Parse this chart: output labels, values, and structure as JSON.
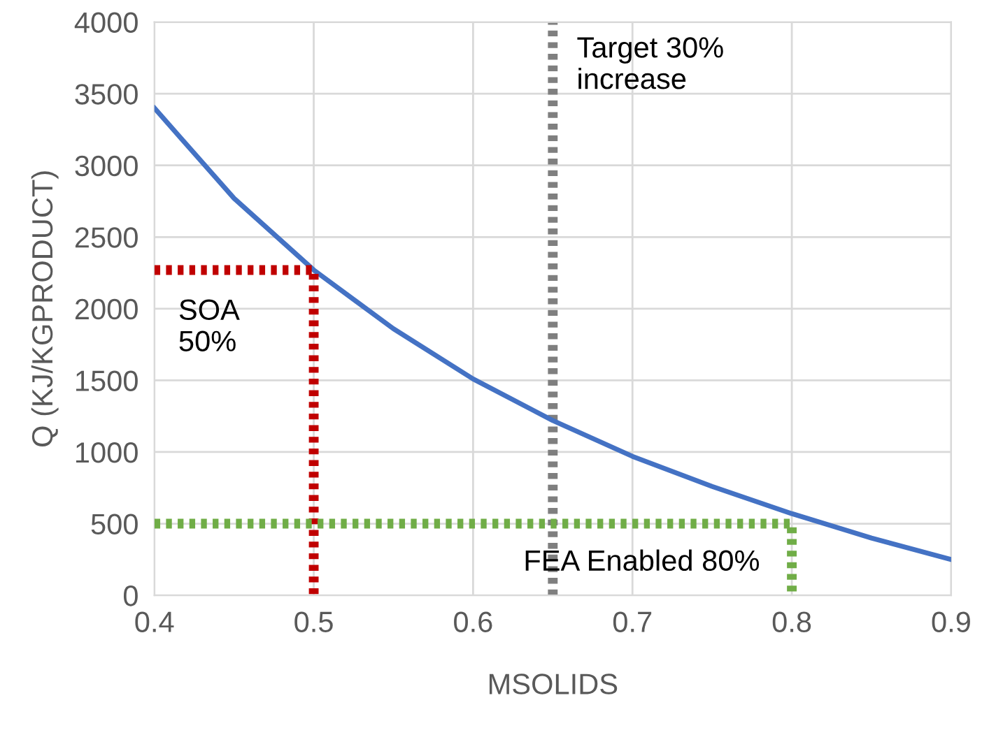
{
  "chart_data": {
    "type": "line",
    "xlabel": "MSOLIDS",
    "ylabel": "Q (KJ/KGPRODUCT)",
    "xlim": [
      0.4,
      0.9
    ],
    "xticks": [
      0.4,
      0.5,
      0.6,
      0.7,
      0.8,
      0.9
    ],
    "ylim": [
      0,
      4000
    ],
    "yticks": [
      0,
      500,
      1000,
      1500,
      2000,
      2500,
      3000,
      3500,
      4000
    ],
    "grid": true,
    "marker": "none",
    "series": [
      {
        "color": "#4472c4",
        "line_style": "solid",
        "x": [
          0.4,
          0.45,
          0.5,
          0.55,
          0.6,
          0.65,
          0.7,
          0.75,
          0.8,
          0.85,
          0.9
        ],
        "values": [
          3400,
          2770,
          2270,
          1860,
          1510,
          1220,
          970,
          760,
          570,
          400,
          250
        ]
      },
      {
        "color": "#c00000",
        "line_style": "dotted",
        "x": [
          0.4,
          0.5,
          0.5
        ],
        "values": [
          2270,
          2270,
          0
        ]
      },
      {
        "color": "#70ad47",
        "line_style": "dotted",
        "x": [
          0.4,
          0.8,
          0.8
        ],
        "values": [
          500,
          500,
          0
        ]
      }
    ],
    "ref_lines": [
      {
        "axis": "x",
        "value": 0.65,
        "label": "Target 30%\nincrease",
        "color": "#7f7f7f",
        "line_style": "dotted"
      }
    ],
    "annotations": [
      {
        "text": "SOA\n50%",
        "x": 0.5,
        "y": 2270
      },
      {
        "text": "FEA Enabled 80%",
        "x": 0.8,
        "y": 500
      }
    ]
  }
}
